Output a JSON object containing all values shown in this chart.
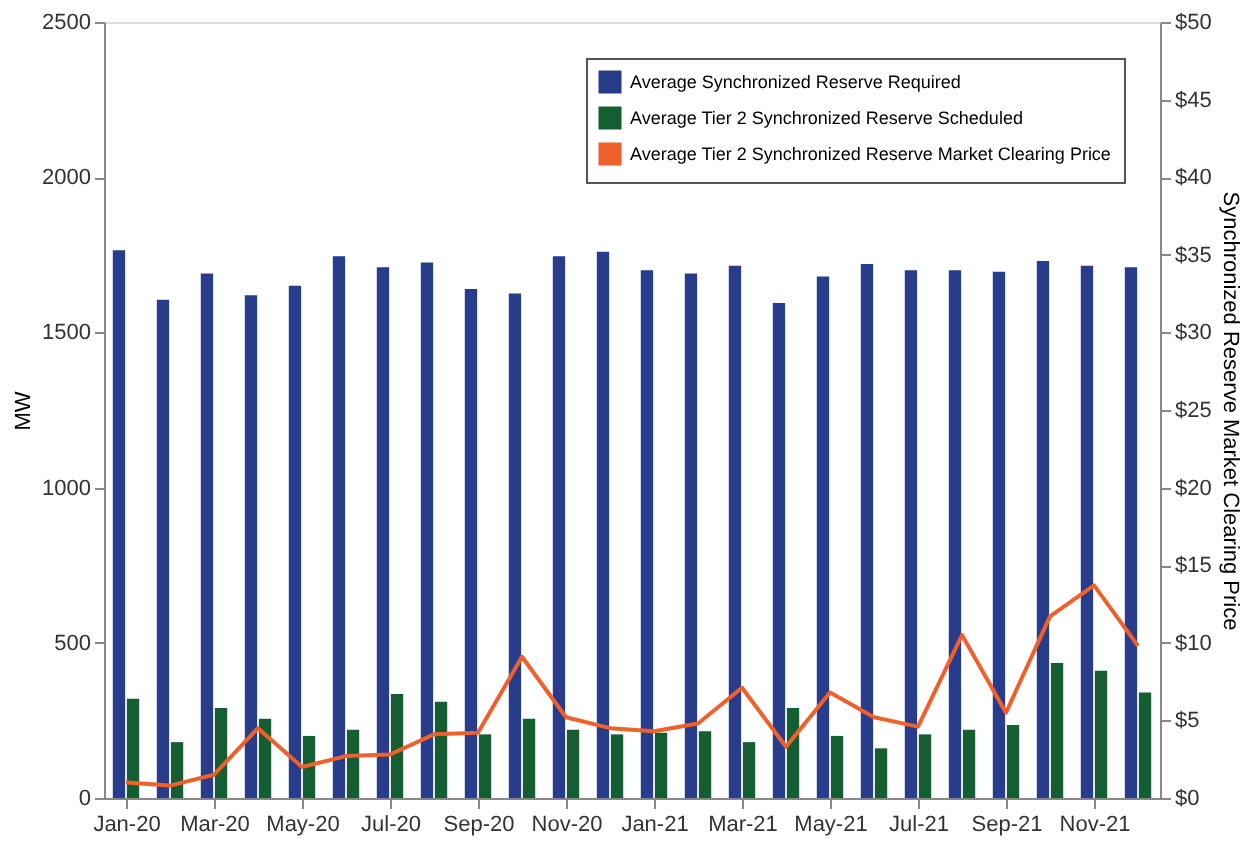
{
  "chart_data": {
    "type": "bar",
    "xlabel": null,
    "ylabel": "MW",
    "y2label": "Synchronized Reserve Market Clearing Price",
    "categories": [
      "Jan-20",
      null,
      "Mar-20",
      null,
      "May-20",
      null,
      "Jul-20",
      null,
      "Sep-20",
      null,
      "Nov-20",
      null,
      "Jan-21",
      null,
      "Mar-21",
      null,
      "May-21",
      null,
      "Jul-21",
      null,
      "Sep-21",
      null,
      "Nov-21",
      null
    ],
    "series": [
      {
        "name": "Average Synchronized Reserve Required",
        "color": "#283c8c",
        "values": [
          1765,
          1605,
          1690,
          1620,
          1650,
          1745,
          1710,
          1725,
          1640,
          1625,
          1745,
          1760,
          1700,
          1690,
          1715,
          1595,
          1680,
          1720,
          1700,
          1700,
          1695,
          1730,
          1715,
          1710
        ]
      },
      {
        "name": "Average Tier 2 Synchronized Reserve Scheduled",
        "color": "#145e32",
        "values": [
          320,
          180,
          290,
          255,
          200,
          220,
          335,
          310,
          205,
          255,
          220,
          205,
          210,
          215,
          180,
          290,
          200,
          160,
          205,
          220,
          235,
          435,
          410,
          340
        ]
      },
      {
        "name": "Average Tier 2 Synchronized Reserve Market Clearing Price",
        "color": "#f0602a",
        "type": "line",
        "axis": "y2",
        "values": [
          1.0,
          0.8,
          1.5,
          4.5,
          2.0,
          2.7,
          2.8,
          4.1,
          4.2,
          9.1,
          5.2,
          4.5,
          4.3,
          4.8,
          7.1,
          3.3,
          6.8,
          5.2,
          4.6,
          10.5,
          5.5,
          11.7,
          13.7,
          9.8
        ]
      }
    ],
    "ylim": [
      0,
      2500
    ],
    "yticks": [
      0,
      500,
      1000,
      1500,
      2000,
      2500
    ],
    "y2lim": [
      0,
      50
    ],
    "y2ticks": [
      {
        "value": 0,
        "label": "$0"
      },
      {
        "value": 5,
        "label": "$5"
      },
      {
        "value": 10,
        "label": "$10"
      },
      {
        "value": 15,
        "label": "$15"
      },
      {
        "value": 20,
        "label": "$20"
      },
      {
        "value": 25,
        "label": "$25"
      },
      {
        "value": 30,
        "label": "$30"
      },
      {
        "value": 35,
        "label": "$35"
      },
      {
        "value": 40,
        "label": "$40"
      },
      {
        "value": 45,
        "label": "$45"
      },
      {
        "value": 50,
        "label": "$50"
      }
    ],
    "grid": false,
    "legend": "top right",
    "marker": "none",
    "line_style": "solid"
  }
}
